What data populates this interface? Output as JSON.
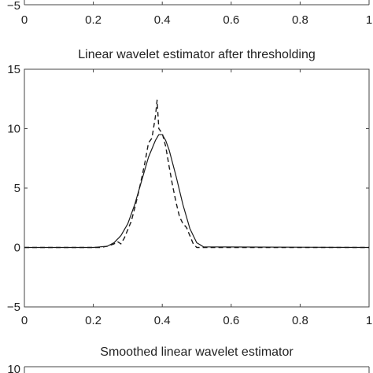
{
  "chart_data": [
    {
      "type": "line",
      "partial": "bottom",
      "title": "",
      "xlabel": "",
      "ylabel": "",
      "xlim": [
        0,
        1
      ],
      "yticks": [
        -5
      ],
      "xticks": [
        0,
        0.2,
        0.4,
        0.6,
        0.8,
        1
      ],
      "xtick_labels": [
        "0",
        "0.2",
        "0.4",
        "0.6",
        "0.8",
        "1"
      ],
      "series": []
    },
    {
      "type": "line",
      "title": "Linear wavelet estimator after thresholding",
      "xlabel": "",
      "ylabel": "",
      "xlim": [
        0,
        1
      ],
      "ylim": [
        -5,
        15
      ],
      "xticks": [
        0,
        0.2,
        0.4,
        0.6,
        0.8,
        1
      ],
      "xtick_labels": [
        "0",
        "0.2",
        "0.4",
        "0.6",
        "0.8",
        "1"
      ],
      "yticks": [
        -5,
        0,
        5,
        10,
        15
      ],
      "ytick_labels": [
        "−5",
        "0",
        "5",
        "10",
        "15"
      ],
      "series": [
        {
          "style": "solid",
          "x": [
            0,
            0.2,
            0.24,
            0.26,
            0.28,
            0.3,
            0.32,
            0.34,
            0.36,
            0.38,
            0.39,
            0.4,
            0.41,
            0.42,
            0.44,
            0.46,
            0.48,
            0.5,
            0.52,
            1
          ],
          "y": [
            0,
            0,
            0.1,
            0.4,
            1.0,
            2.0,
            3.6,
            5.6,
            7.6,
            9.0,
            9.5,
            9.5,
            9.0,
            8.2,
            6.0,
            3.6,
            1.6,
            0.4,
            0.05,
            0
          ]
        },
        {
          "style": "dashed",
          "x": [
            0,
            0.22,
            0.24,
            0.26,
            0.27,
            0.28,
            0.29,
            0.3,
            0.31,
            0.32,
            0.33,
            0.34,
            0.35,
            0.36,
            0.37,
            0.38,
            0.385,
            0.39,
            0.4,
            0.41,
            0.42,
            0.43,
            0.44,
            0.45,
            0.46,
            0.47,
            0.48,
            0.49,
            0.5,
            1
          ],
          "y": [
            0,
            0,
            0.1,
            0.3,
            0.5,
            0.3,
            0.8,
            1.5,
            2.2,
            3.3,
            4.5,
            5.8,
            7.2,
            8.8,
            9.2,
            11.0,
            12.4,
            10.0,
            9.6,
            8.5,
            6.8,
            5.2,
            3.8,
            2.6,
            2.0,
            1.7,
            1.0,
            0.3,
            0,
            0
          ]
        }
      ]
    },
    {
      "type": "line",
      "partial": "top",
      "title": "Smoothed linear wavelet estimator",
      "xlabel": "",
      "ylabel": "",
      "xlim": [
        0,
        1
      ],
      "yticks": [
        10
      ],
      "ytick_labels": [
        "10"
      ],
      "series": []
    }
  ]
}
